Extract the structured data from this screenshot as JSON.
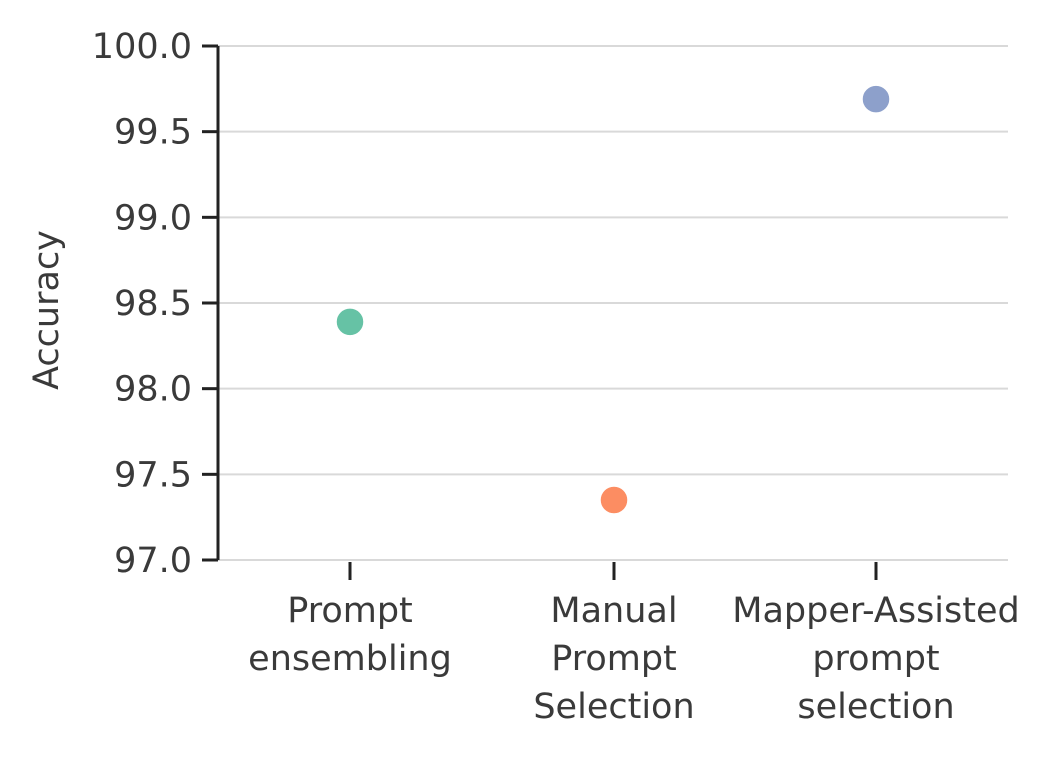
{
  "chart_data": {
    "type": "scatter",
    "title": "",
    "xlabel": "",
    "ylabel": "Accuracy",
    "ylim": [
      97.0,
      100.0
    ],
    "yticks": [
      "97.0",
      "97.5",
      "98.0",
      "98.5",
      "99.0",
      "99.5",
      "100.0"
    ],
    "grid": "horizontal",
    "categories": [
      [
        "Prompt",
        "ensembling"
      ],
      [
        "Manual",
        "Prompt",
        "Selection"
      ],
      [
        "Mapper-Assisted",
        "prompt",
        "selection"
      ]
    ],
    "points": [
      {
        "category_index": 0,
        "value": 98.39,
        "color": "#66c2a5"
      },
      {
        "category_index": 1,
        "value": 97.35,
        "color": "#fc8d62"
      },
      {
        "category_index": 2,
        "value": 99.69,
        "color": "#8da0cb"
      }
    ]
  },
  "colors": {
    "axis": "#222222",
    "grid": "#d9d9d9",
    "text": "#3a3a3a"
  }
}
